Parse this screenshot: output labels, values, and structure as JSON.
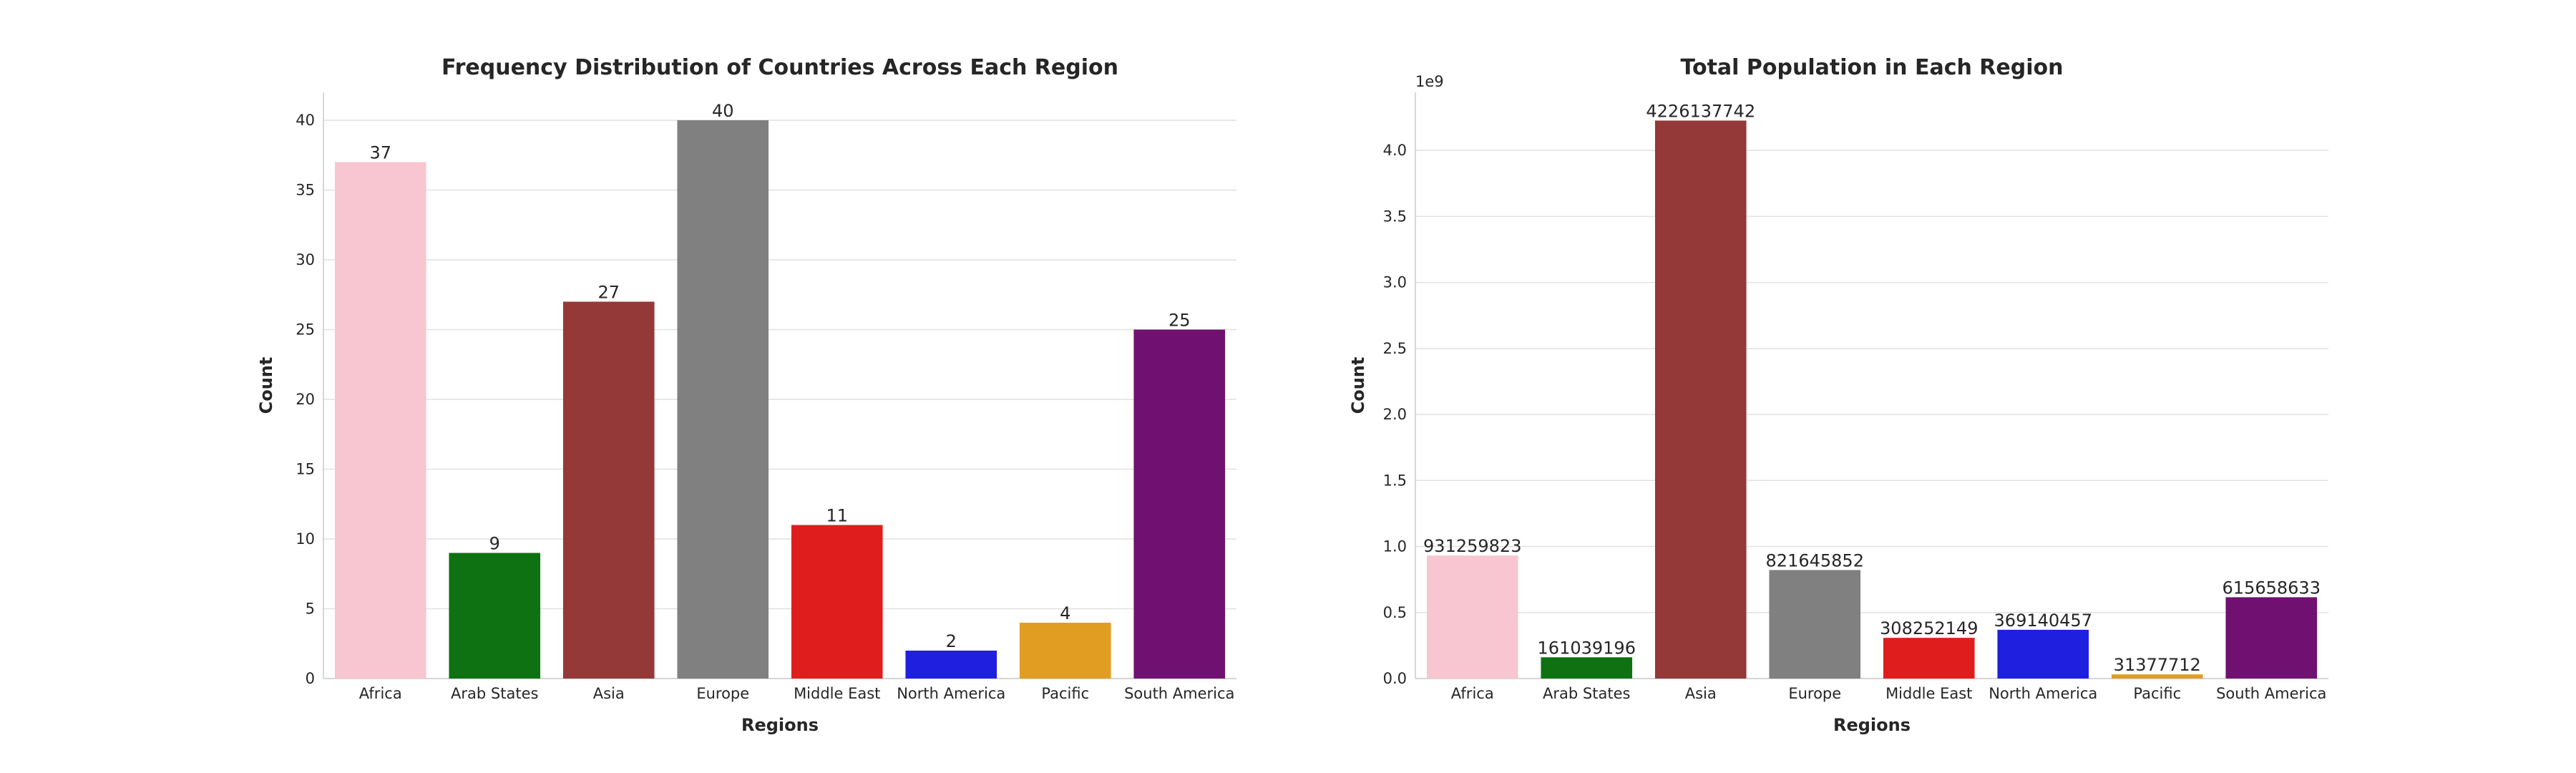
{
  "chart_data": [
    {
      "type": "bar",
      "title": "Frequency Distribution of Countries Across Each Region",
      "xlabel": "Regions",
      "ylabel": "Count",
      "categories": [
        "Africa",
        "Arab States",
        "Asia",
        "Europe",
        "Middle East",
        "North America",
        "Pacific",
        "South America"
      ],
      "values": [
        37,
        9,
        27,
        40,
        11,
        2,
        4,
        25
      ],
      "data_labels": [
        "37",
        "9",
        "27",
        "40",
        "11",
        "2",
        "4",
        "25"
      ],
      "colors": [
        "#f8c6d0",
        "#0e7212",
        "#943838",
        "#808080",
        "#e01d1d",
        "#1f1fe0",
        "#e09d22",
        "#701070"
      ],
      "ylim": [
        0,
        42
      ],
      "yticks": [
        0,
        5,
        10,
        15,
        20,
        25,
        30,
        35,
        40
      ],
      "ytick_labels": [
        "0",
        "5",
        "10",
        "15",
        "20",
        "25",
        "30",
        "35",
        "40"
      ],
      "grid": true
    },
    {
      "type": "bar",
      "title": "Total Population in Each Region",
      "xlabel": "Regions",
      "ylabel": "Count",
      "offset_text": "1e9",
      "categories": [
        "Africa",
        "Arab States",
        "Asia",
        "Europe",
        "Middle East",
        "North America",
        "Pacific",
        "South America"
      ],
      "values": [
        931259823,
        161039196,
        4226137742,
        821645852,
        308252149,
        369140457,
        31377712,
        615658633
      ],
      "data_labels": [
        "931259823",
        "161039196",
        "4226137742",
        "821645852",
        "308252149",
        "369140457",
        "31377712",
        "615658633"
      ],
      "colors": [
        "#f8c6d0",
        "#0e7212",
        "#943838",
        "#808080",
        "#e01d1d",
        "#1f1fe0",
        "#e09d22",
        "#701070"
      ],
      "ylim": [
        0,
        4440000000
      ],
      "yticks": [
        0,
        500000000,
        1000000000,
        1500000000,
        2000000000,
        2500000000,
        3000000000,
        3500000000,
        4000000000
      ],
      "ytick_labels": [
        "0.0",
        "0.5",
        "1.0",
        "1.5",
        "2.0",
        "2.5",
        "3.0",
        "3.5",
        "4.0"
      ],
      "grid": true
    }
  ]
}
